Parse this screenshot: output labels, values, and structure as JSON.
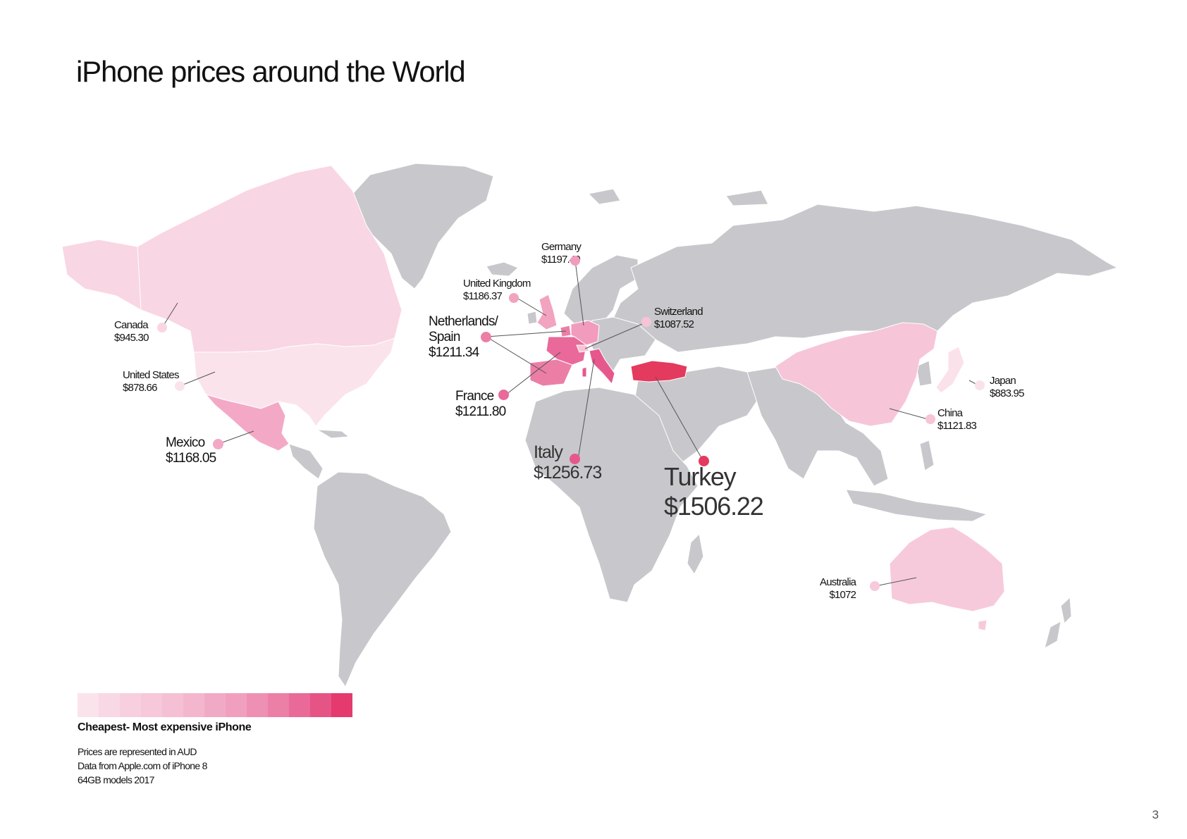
{
  "title": "iPhone prices around the World",
  "colors": {
    "no_data": "#c8c8cc",
    "scale": [
      "#fbe3ec",
      "#f9d8e5",
      "#f8cfdf",
      "#f6c8d9",
      "#f5c0d3",
      "#f3b6cd",
      "#f1aac5",
      "#f0a0be",
      "#ee90b3",
      "#ec7fa6",
      "#e96a98",
      "#e65486",
      "#e43a6e"
    ]
  },
  "countries": [
    {
      "name": "Canada",
      "price": "$945.30",
      "color": "#f9d6e3"
    },
    {
      "name": "United States",
      "price": "$878.66",
      "color": "#fbe3ec"
    },
    {
      "name": "Mexico",
      "price": "$1168.05",
      "color": "#f3a9c6"
    },
    {
      "name": "Germany",
      "price": "$1197.49",
      "color": "#f19cbc"
    },
    {
      "name": "United Kingdom",
      "price": "$1186.37",
      "color": "#f2a3c0"
    },
    {
      "name": "Netherlands/ Spain",
      "price": "$1211.34",
      "color": "#ec7ea6"
    },
    {
      "name": "Switzerland",
      "price": "$1087.52",
      "color": "#f7c4d6"
    },
    {
      "name": "France",
      "price": "$1211.80",
      "color": "#e9699a"
    },
    {
      "name": "Italy",
      "price": "$1256.73",
      "color": "#e6588c"
    },
    {
      "name": "Turkey",
      "price": "$1506.22",
      "color": "#e43a5e"
    },
    {
      "name": "Japan",
      "price": "$883.95",
      "color": "#fbe1ea"
    },
    {
      "name": "China",
      "price": "$1121.83",
      "color": "#f6c5d8"
    },
    {
      "name": "Australia",
      "price": "$1072",
      "color": "#f7cadb"
    }
  ],
  "legend": {
    "label": "Cheapest- Most expensive iPhone"
  },
  "notes": [
    "Prices are represented in AUD",
    "Data from Apple.com of iPhone 8",
    "64GB models 2017"
  ],
  "page_number": "3"
}
